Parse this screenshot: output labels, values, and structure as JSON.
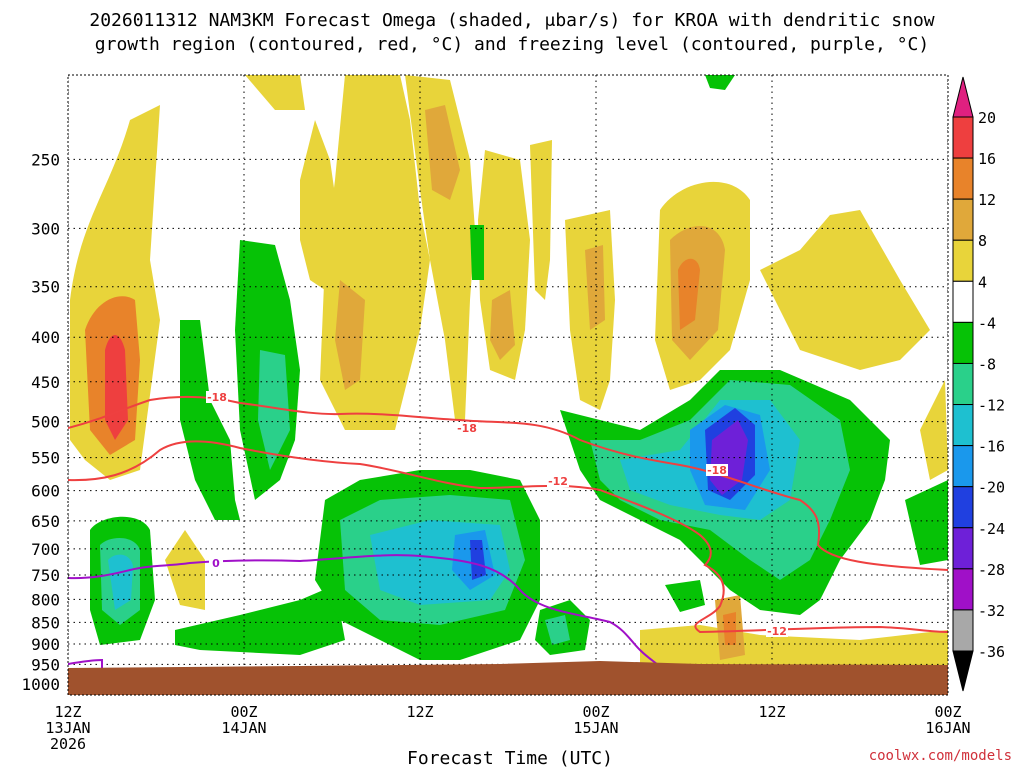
{
  "chart_data": {
    "type": "heatmap",
    "title_line1": "2026011312 NAM3KM Forecast Omega (shaded, μbar/s) for KROA with dendritic snow",
    "title_line2": "growth region (contoured, red, °C) and freezing level (contoured, purple, °C)",
    "xlabel": "Forecast Time (UTC)",
    "x_ticks": [
      {
        "hour": 0,
        "line1": "12Z",
        "line2": "13JAN",
        "line3": "2026"
      },
      {
        "hour": 12,
        "line1": "00Z",
        "line2": "14JAN",
        "line3": ""
      },
      {
        "hour": 24,
        "line1": "12Z",
        "line2": "",
        "line3": ""
      },
      {
        "hour": 36,
        "line1": "00Z",
        "line2": "15JAN",
        "line3": ""
      },
      {
        "hour": 48,
        "line1": "12Z",
        "line2": "",
        "line3": ""
      },
      {
        "hour": 60,
        "line1": "00Z",
        "line2": "16JAN",
        "line3": ""
      }
    ],
    "xlim": [
      0,
      60
    ],
    "y_ticks": [
      "250",
      "300",
      "350",
      "400",
      "450",
      "500",
      "550",
      "600",
      "650",
      "700",
      "750",
      "800",
      "850",
      "900",
      "950",
      "1000"
    ],
    "ylim": [
      1030,
      200
    ],
    "grid": true,
    "colorbar": {
      "labels": [
        "20",
        "16",
        "12",
        "8",
        "4",
        "-4",
        "-8",
        "-12",
        "-16",
        "-20",
        "-24",
        "-28",
        "-32",
        "-36"
      ],
      "colors": [
        "#ee3f3f",
        "#e8832a",
        "#e0a83a",
        "#e8d43a",
        "#ffffff",
        "#06c206",
        "#2ad08a",
        "#1ec0d0",
        "#1a98ec",
        "#2040e0",
        "#6e20d8",
        "#a010c8",
        "#a8a8a8"
      ],
      "top_color": "#e02080",
      "bottom_color": "#000000"
    },
    "contours": [
      {
        "label": "-18",
        "color": "#ee4040"
      },
      {
        "label": "-12",
        "color": "#ee4040"
      },
      {
        "label": "0",
        "color": "#a010c8"
      }
    ],
    "ground_color": "#a0522d",
    "credit": "coolwx.com/models"
  }
}
